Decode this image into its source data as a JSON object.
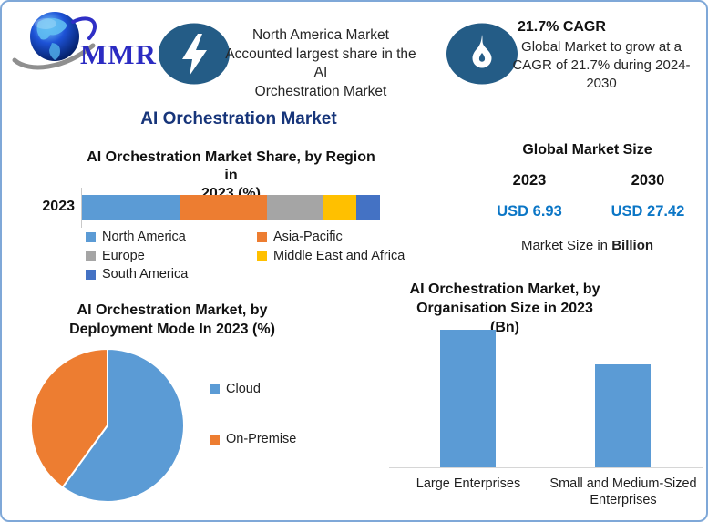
{
  "logo": {
    "text": "MMR"
  },
  "header": {
    "badge1": {
      "icon": "lightning-icon",
      "lines": [
        "North America Market",
        "Accounted largest share in the AI",
        "Orchestration Market"
      ]
    },
    "badge2": {
      "icon": "flame-icon",
      "heading": "21.7% CAGR",
      "lines": [
        "Global Market to grow at a",
        "CAGR of 21.7% during 2024-",
        "2030"
      ]
    },
    "icon_circle_color": "#245C86"
  },
  "main_title": "AI Orchestration Market",
  "region_section": {
    "title_lines": [
      "AI Orchestration Market Share, by Region in",
      "2023 (%)"
    ]
  },
  "market_size": {
    "title": "Global Market Size",
    "year1": "2023",
    "year2": "2030",
    "value1": "USD 6.93",
    "value2": "USD 27.42",
    "value_color": "#0B76C6",
    "caption_text": "Market Size in",
    "caption_bold": "Billion"
  },
  "deployment_section": {
    "title_lines": [
      "AI Orchestration Market, by",
      "Deployment Mode In 2023 (%)"
    ]
  },
  "organisation_section": {
    "title_lines": [
      "AI Orchestration Market, by",
      "Organisation Size in 2023 (Bn)"
    ]
  },
  "chart_data": [
    {
      "type": "bar",
      "variant": "horizontal-stacked",
      "title": "AI Orchestration Market Share, by Region in 2023 (%)",
      "categories": [
        "2023"
      ],
      "series": [
        {
          "name": "North America",
          "values": [
            33
          ],
          "color": "#5B9BD5"
        },
        {
          "name": "Asia-Pacific",
          "values": [
            29
          ],
          "color": "#ED7D31"
        },
        {
          "name": "Europe",
          "values": [
            19
          ],
          "color": "#A5A5A5"
        },
        {
          "name": "Middle East and Africa",
          "values": [
            11
          ],
          "color": "#FFC000"
        },
        {
          "name": "South America",
          "values": [
            8
          ],
          "color": "#4472C4"
        }
      ],
      "xlim": [
        0,
        100
      ],
      "legend_position": "bottom"
    },
    {
      "type": "pie",
      "title": "AI Orchestration Market, by Deployment Mode In 2023 (%)",
      "labels": [
        "Cloud",
        "On-Premise"
      ],
      "values": [
        60,
        40
      ],
      "colors": [
        "#5B9BD5",
        "#ED7D31"
      ],
      "legend_position": "right",
      "start_angle_deg": 0,
      "direction": "clockwise"
    },
    {
      "type": "bar",
      "title": "AI Orchestration Market, by Organisation Size in 2023 (Bn)",
      "categories": [
        "Large Enterprises",
        "Small and Medium-Sized Enterprises"
      ],
      "values": [
        4.0,
        3.0
      ],
      "bar_color": "#5B9BD5",
      "ylim": [
        0,
        4.5
      ],
      "grid": false
    }
  ]
}
